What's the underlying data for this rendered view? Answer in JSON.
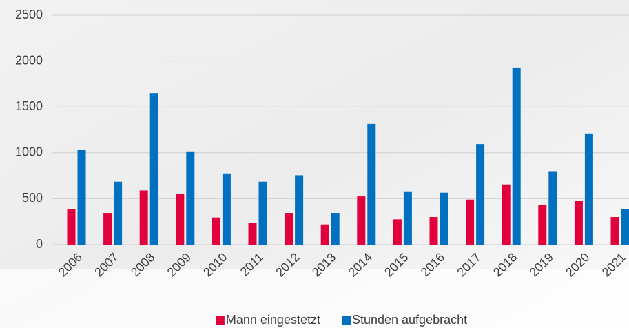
{
  "chart_data": {
    "type": "bar",
    "categories": [
      "2006",
      "2007",
      "2008",
      "2009",
      "2010",
      "2011",
      "2012",
      "2013",
      "2014",
      "2015",
      "2016",
      "2017",
      "2018",
      "2019",
      "2020",
      "2021"
    ],
    "series": [
      {
        "name": "Mann eingestetzt",
        "color": "#e2003c",
        "values": [
          385,
          345,
          590,
          555,
          295,
          235,
          345,
          220,
          525,
          275,
          300,
          490,
          655,
          430,
          475,
          300
        ]
      },
      {
        "name": "Stunden aufgebracht",
        "color": "#0070c0",
        "values": [
          1030,
          685,
          1650,
          1015,
          775,
          685,
          755,
          345,
          1315,
          580,
          565,
          1095,
          1930,
          800,
          1210,
          390
        ]
      }
    ],
    "ylim": [
      0,
      2500
    ],
    "yticks": [
      0,
      500,
      1000,
      1500,
      2000,
      2500
    ],
    "grid": true,
    "legend": "bottom"
  }
}
